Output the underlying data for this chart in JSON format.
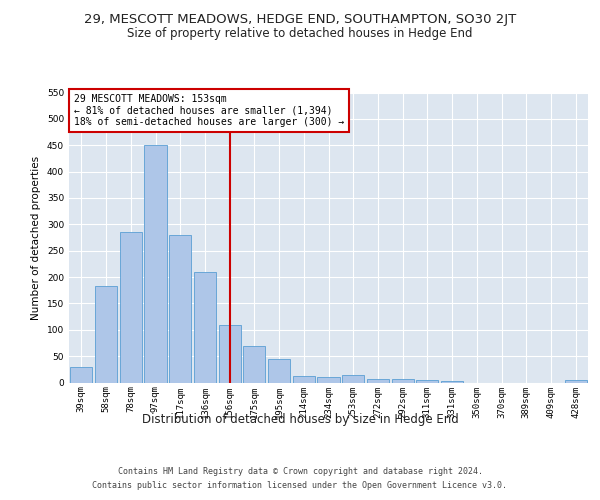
{
  "title": "29, MESCOTT MEADOWS, HEDGE END, SOUTHAMPTON, SO30 2JT",
  "subtitle": "Size of property relative to detached houses in Hedge End",
  "xlabel": "Distribution of detached houses by size in Hedge End",
  "ylabel": "Number of detached properties",
  "categories": [
    "39sqm",
    "58sqm",
    "78sqm",
    "97sqm",
    "117sqm",
    "136sqm",
    "156sqm",
    "175sqm",
    "195sqm",
    "214sqm",
    "234sqm",
    "253sqm",
    "272sqm",
    "292sqm",
    "311sqm",
    "331sqm",
    "350sqm",
    "370sqm",
    "389sqm",
    "409sqm",
    "428sqm"
  ],
  "values": [
    30,
    183,
    285,
    450,
    280,
    210,
    110,
    70,
    45,
    13,
    10,
    15,
    7,
    7,
    4,
    3,
    0,
    0,
    0,
    0,
    5
  ],
  "bar_color": "#aec6e8",
  "bar_edge_color": "#5a9fd4",
  "vline_index": 6,
  "vline_color": "#cc0000",
  "annotation_text": "29 MESCOTT MEADOWS: 153sqm\n← 81% of detached houses are smaller (1,394)\n18% of semi-detached houses are larger (300) →",
  "annotation_box_edge": "#cc0000",
  "ylim": [
    0,
    550
  ],
  "yticks": [
    0,
    50,
    100,
    150,
    200,
    250,
    300,
    350,
    400,
    450,
    500,
    550
  ],
  "background_color": "#dde6f0",
  "footer_line1": "Contains HM Land Registry data © Crown copyright and database right 2024.",
  "footer_line2": "Contains public sector information licensed under the Open Government Licence v3.0.",
  "title_fontsize": 9.5,
  "subtitle_fontsize": 8.5,
  "xlabel_fontsize": 8.5,
  "ylabel_fontsize": 7.5,
  "tick_fontsize": 6.5,
  "annotation_fontsize": 7.0,
  "footer_fontsize": 6.0
}
